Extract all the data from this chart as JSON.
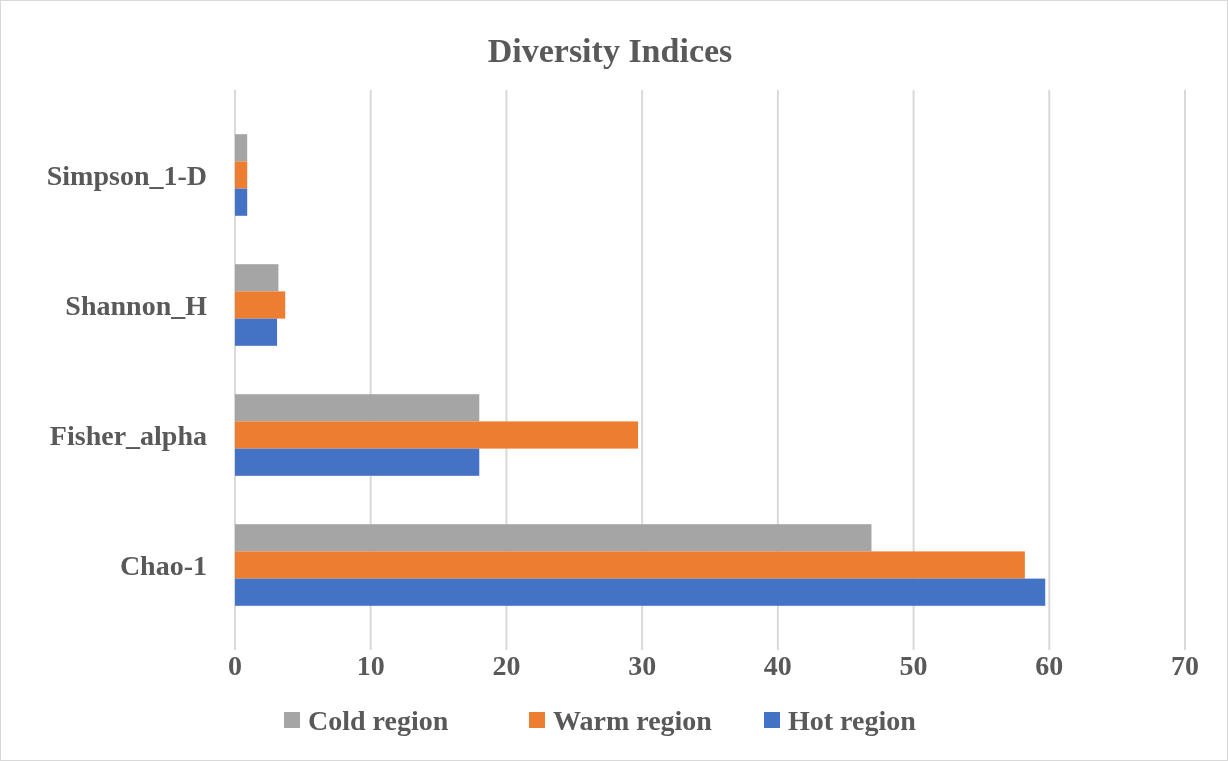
{
  "chart_data": {
    "type": "bar",
    "orientation": "horizontal",
    "title": "Diversity Indices",
    "categories": [
      "Simpson_1-D",
      "Shannon_H",
      "Fisher_alpha",
      "Chao-1"
    ],
    "series": [
      {
        "name": "Cold region",
        "color": "#a5a5a5",
        "values": [
          0.9,
          3.2,
          18.0,
          46.9
        ]
      },
      {
        "name": "Warm region",
        "color": "#ed7d31",
        "values": [
          0.9,
          3.7,
          29.7,
          58.2
        ]
      },
      {
        "name": "Hot region",
        "color": "#4472c4",
        "values": [
          0.9,
          3.1,
          18.0,
          59.7
        ]
      }
    ],
    "xlim": [
      0,
      70
    ],
    "xticks": [
      0,
      10,
      20,
      30,
      40,
      50,
      60,
      70
    ],
    "grid": "x",
    "legend": "bottom"
  }
}
